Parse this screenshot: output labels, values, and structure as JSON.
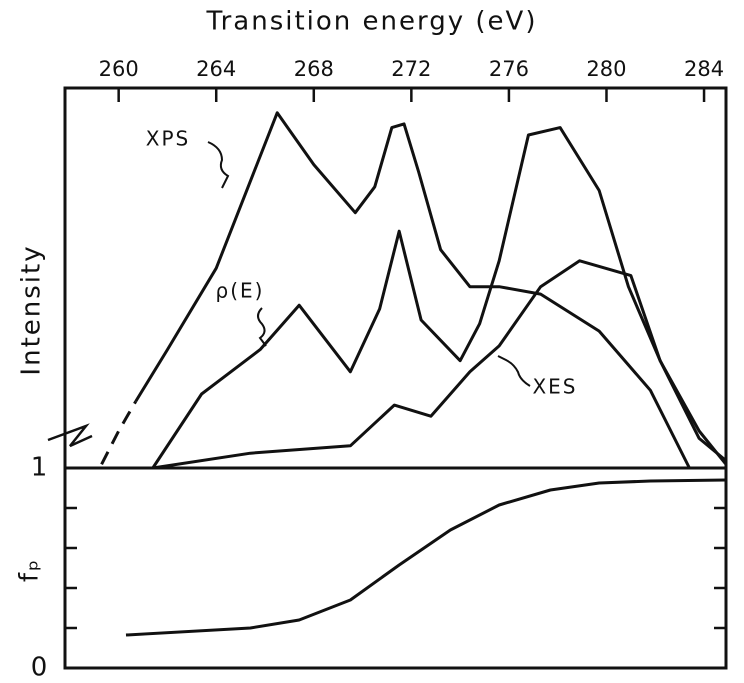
{
  "chart_data": [
    {
      "type": "line",
      "xlabel": "Transition energy (eV)",
      "ylabel": "Intensity",
      "xlim": [
        257.8,
        284.9
      ],
      "xticks": [
        260,
        264,
        268,
        272,
        276,
        280,
        284
      ],
      "ylim": [
        0,
        1
      ],
      "series": [
        {
          "name": "XPS",
          "color": "#111111",
          "dashed_until_x": 260.7,
          "x": [
            259.3,
            260.0,
            260.7,
            262,
            264,
            266.5,
            268,
            269.7,
            270.5,
            271.2,
            271.7,
            272.3,
            273.2,
            274.4,
            275.6,
            277.3,
            279.7,
            281.8,
            283.4
          ],
          "values": [
            0.01,
            0.1,
            0.18,
            0.32,
            0.54,
            0.96,
            0.82,
            0.69,
            0.76,
            0.92,
            0.93,
            0.8,
            0.59,
            0.49,
            0.49,
            0.47,
            0.37,
            0.21,
            0.0
          ]
        },
        {
          "name": "ρ(E)",
          "color": "#111111",
          "x": [
            261.4,
            263.4,
            265.8,
            267.4,
            269.5,
            270.7,
            271.5,
            272.4,
            274.0,
            274.8,
            275.6,
            276.8,
            278.1,
            279.7,
            280.9,
            282.2,
            283.8,
            284.9
          ],
          "values": [
            0.0,
            0.2,
            0.32,
            0.44,
            0.26,
            0.43,
            0.64,
            0.4,
            0.29,
            0.39,
            0.56,
            0.9,
            0.92,
            0.75,
            0.49,
            0.29,
            0.08,
            0.02
          ]
        },
        {
          "name": "XES",
          "color": "#111111",
          "x": [
            261.4,
            265.4,
            269.5,
            271.3,
            272.8,
            274.4,
            275.6,
            277.3,
            278.9,
            281.0,
            282.2,
            283.8,
            284.9
          ],
          "values": [
            0.0,
            0.04,
            0.06,
            0.17,
            0.14,
            0.26,
            0.33,
            0.49,
            0.56,
            0.52,
            0.29,
            0.1,
            0.01
          ]
        }
      ]
    },
    {
      "type": "line",
      "ylabel": "fₚ",
      "xlim": [
        257.8,
        284.9
      ],
      "ylim": [
        0,
        1
      ],
      "yticks": [
        0,
        1
      ],
      "yminor": [
        0.2,
        0.4,
        0.6,
        0.8
      ],
      "series": [
        {
          "name": "fₚ",
          "color": "#111111",
          "x": [
            260.3,
            265.4,
            267.4,
            269.5,
            271.5,
            273.6,
            275.6,
            277.7,
            279.7,
            281.8,
            284.9
          ],
          "values": [
            0.165,
            0.2,
            0.24,
            0.34,
            0.515,
            0.69,
            0.815,
            0.89,
            0.925,
            0.935,
            0.94
          ]
        }
      ]
    }
  ]
}
